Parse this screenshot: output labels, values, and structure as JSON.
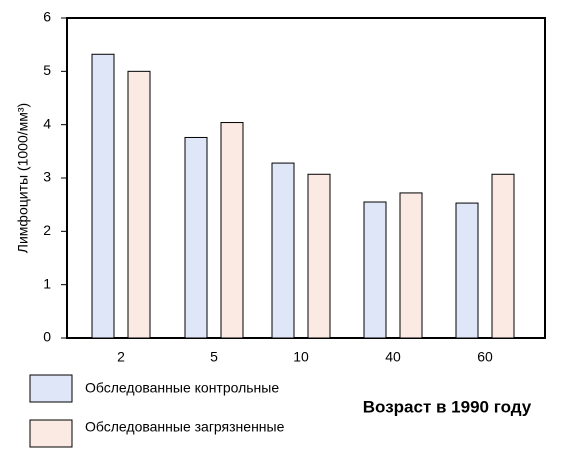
{
  "chart_data": {
    "type": "bar",
    "title": "",
    "xlabel": "Возраст в 1990 году",
    "ylabel": "Лимфоциты (1000/мм³)",
    "ylim": [
      0,
      6
    ],
    "yticks": [
      "0",
      "1",
      "2",
      "3",
      "4",
      "5",
      "6"
    ],
    "categories": [
      "2",
      "5",
      "10",
      "40",
      "60"
    ],
    "grid": false,
    "legend_position": "bottom-left",
    "series": [
      {
        "name": "Обследованные контрольные",
        "color": "#dfe6f8",
        "values": [
          5.32,
          3.76,
          3.28,
          2.55,
          2.53
        ]
      },
      {
        "name": "Обследованные загрязненные",
        "color": "#fbe9e4",
        "values": [
          5.0,
          4.04,
          3.07,
          2.72,
          3.07
        ]
      }
    ]
  }
}
